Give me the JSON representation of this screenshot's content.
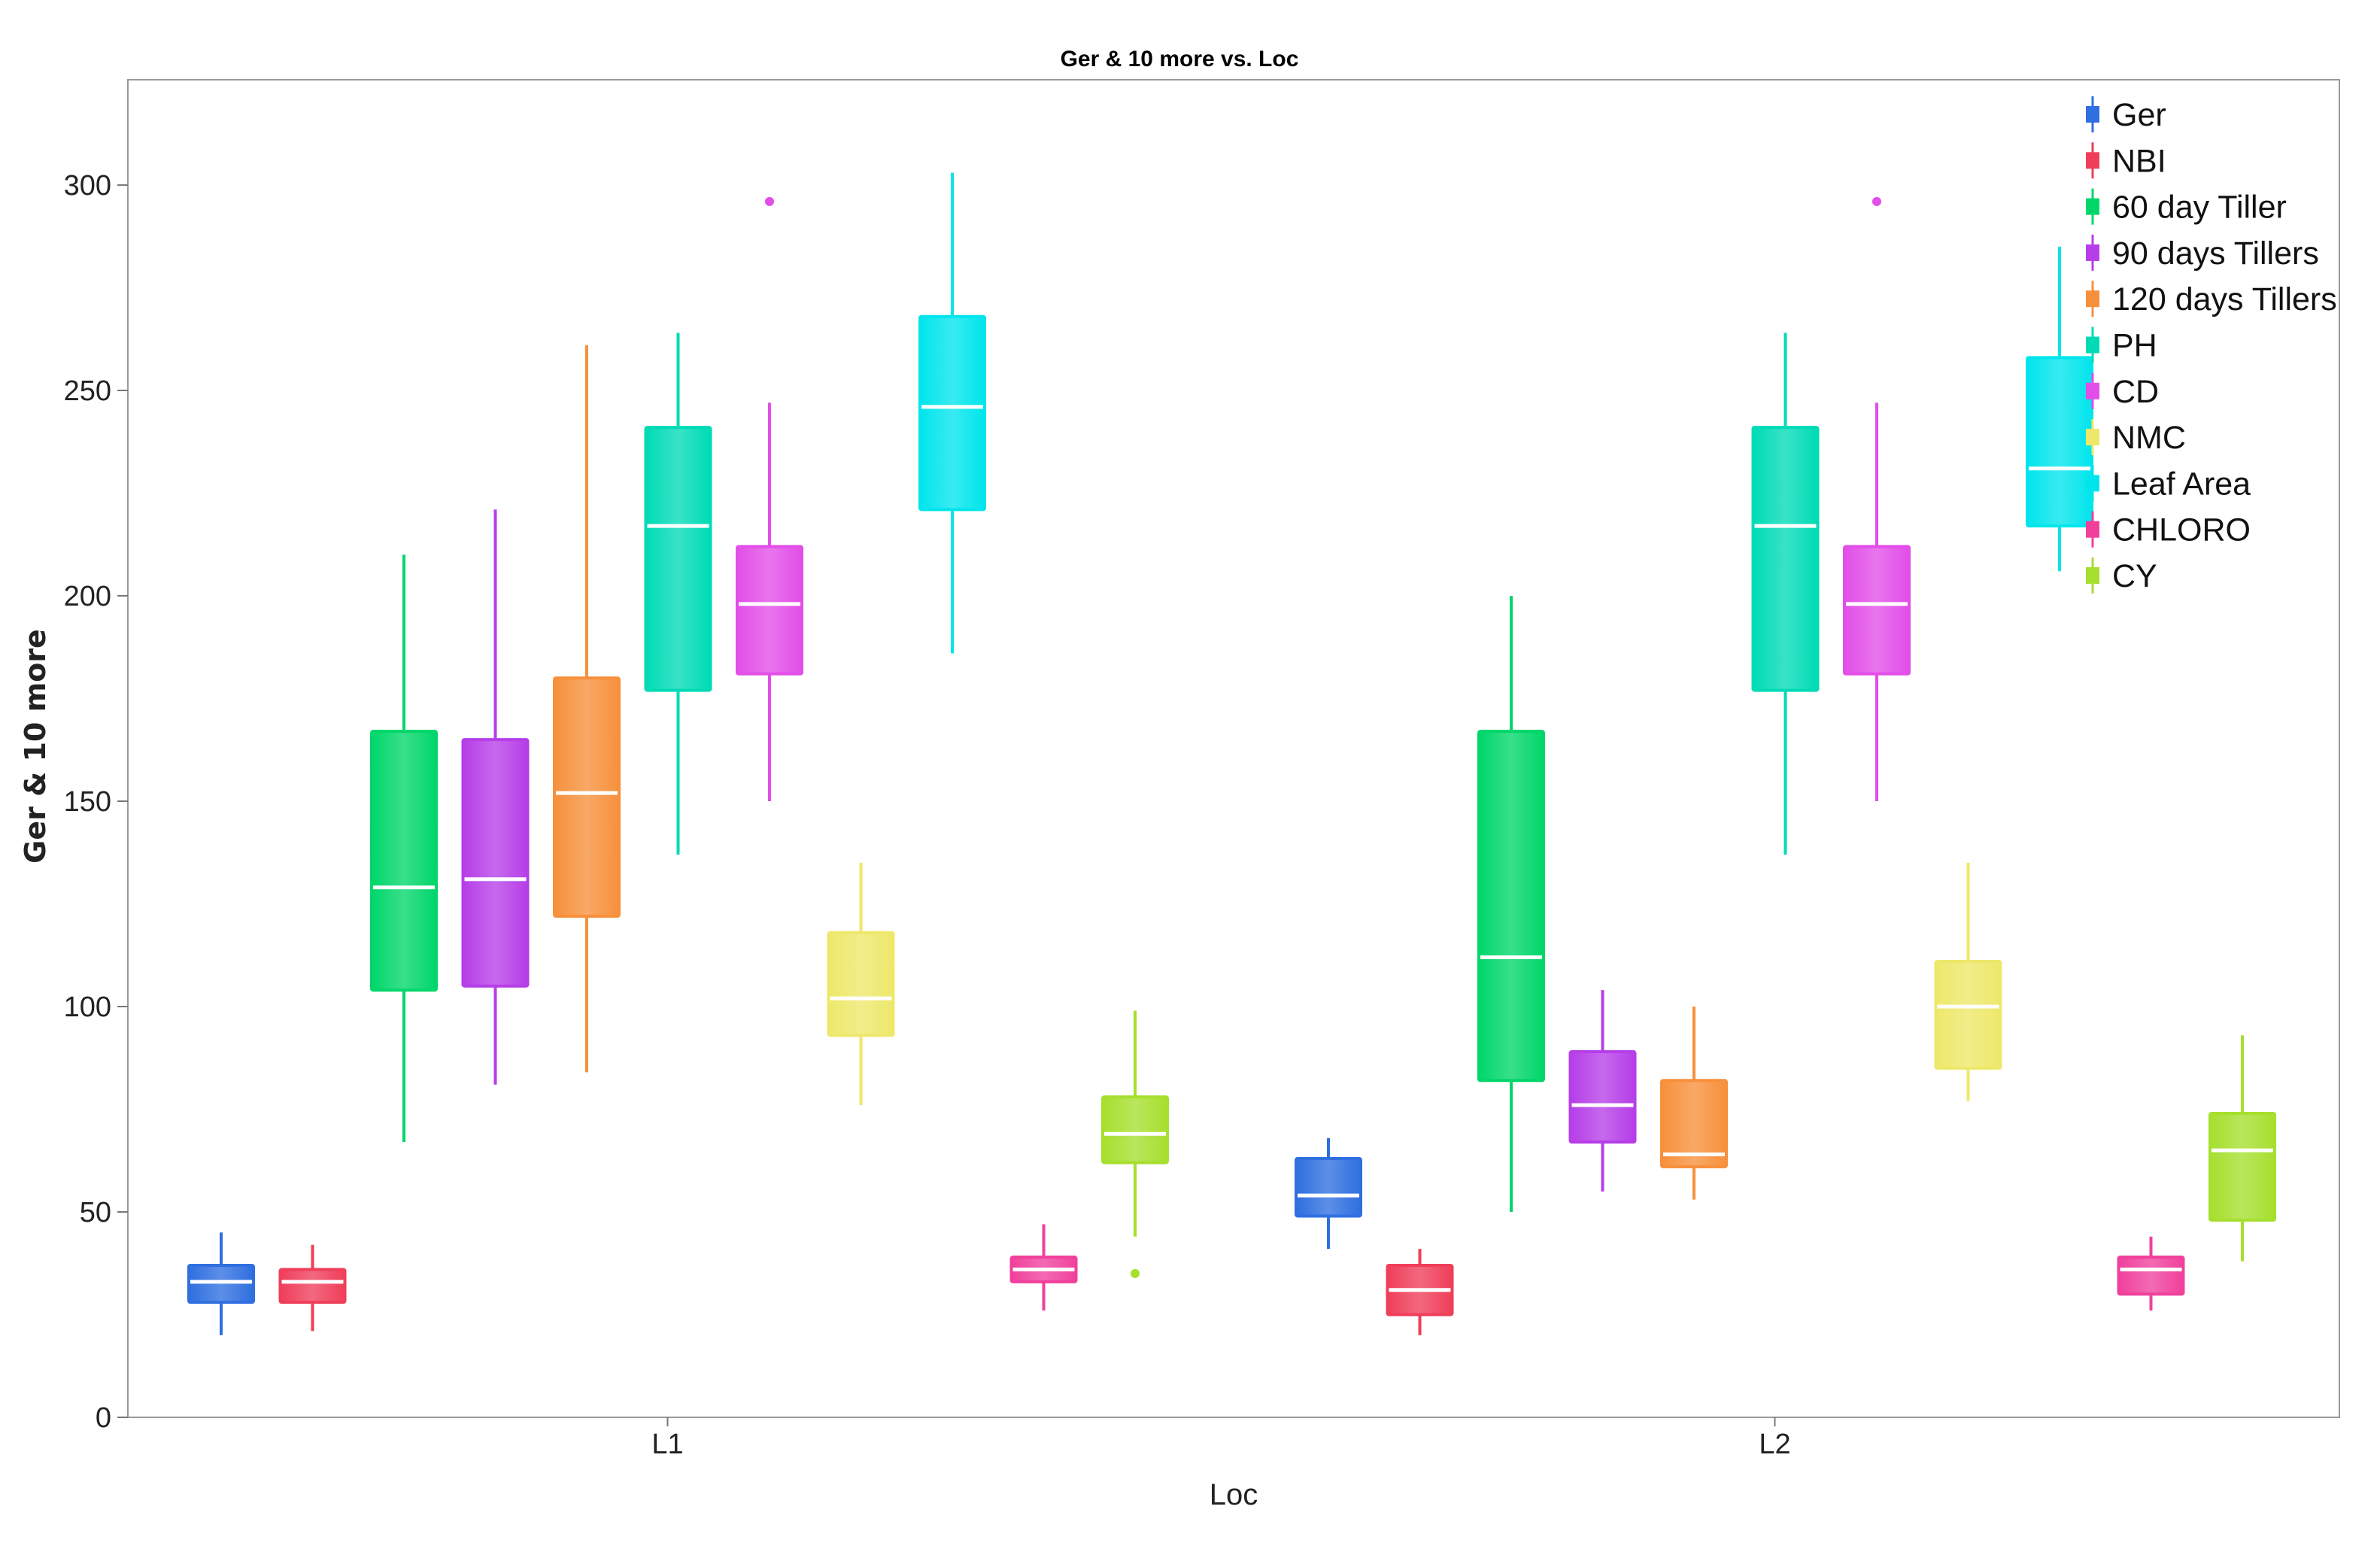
{
  "chart_data": {
    "type": "box",
    "title": "Ger & 10 more vs. Loc",
    "xlabel": "Loc",
    "ylabel": "Ger & 10 more",
    "ylim": [
      0,
      325
    ],
    "yticks": [
      0,
      50,
      100,
      150,
      200,
      250,
      300
    ],
    "categories": [
      "L1",
      "L2"
    ],
    "grid": false,
    "legend_position": "top-right",
    "series": [
      {
        "name": "Ger",
        "color": "#2f6fe0",
        "boxes": [
          {
            "group": "L1",
            "min": 20,
            "q1": 28,
            "median": 33,
            "q3": 37,
            "max": 45,
            "outliers": []
          },
          {
            "group": "L2",
            "min": 41,
            "q1": 49,
            "median": 54,
            "q3": 63,
            "max": 68,
            "outliers": []
          }
        ]
      },
      {
        "name": "NBI",
        "color": "#ef3e5a",
        "boxes": [
          {
            "group": "L1",
            "min": 21,
            "q1": 28,
            "median": 33,
            "q3": 36,
            "max": 42,
            "outliers": []
          },
          {
            "group": "L2",
            "min": 20,
            "q1": 25,
            "median": 31,
            "q3": 37,
            "max": 41,
            "outliers": []
          }
        ]
      },
      {
        "name": "60 day Tiller",
        "color": "#00d66a",
        "boxes": [
          {
            "group": "L1",
            "min": 67,
            "q1": 104,
            "median": 129,
            "q3": 167,
            "max": 210,
            "outliers": []
          },
          {
            "group": "L2",
            "min": 50,
            "q1": 82,
            "median": 112,
            "q3": 167,
            "max": 200,
            "outliers": []
          }
        ]
      },
      {
        "name": "90 days Tillers",
        "color": "#b63ee8",
        "boxes": [
          {
            "group": "L1",
            "min": 81,
            "q1": 105,
            "median": 131,
            "q3": 165,
            "max": 221,
            "outliers": []
          },
          {
            "group": "L2",
            "min": 55,
            "q1": 67,
            "median": 76,
            "q3": 89,
            "max": 104,
            "outliers": []
          }
        ]
      },
      {
        "name": "120 days Tillers",
        "color": "#f7903c",
        "boxes": [
          {
            "group": "L1",
            "min": 84,
            "q1": 122,
            "median": 152,
            "q3": 180,
            "max": 261,
            "outliers": []
          },
          {
            "group": "L2",
            "min": 53,
            "q1": 61,
            "median": 64,
            "q3": 82,
            "max": 100,
            "outliers": []
          }
        ]
      },
      {
        "name": "PH",
        "color": "#00dbb5",
        "boxes": [
          {
            "group": "L1",
            "min": 137,
            "q1": 177,
            "median": 217,
            "q3": 241,
            "max": 264,
            "outliers": []
          },
          {
            "group": "L2",
            "min": 137,
            "q1": 177,
            "median": 217,
            "q3": 241,
            "max": 264,
            "outliers": []
          }
        ]
      },
      {
        "name": "CD",
        "color": "#e24ee8",
        "boxes": [
          {
            "group": "L1",
            "min": 150,
            "q1": 181,
            "median": 198,
            "q3": 212,
            "max": 247,
            "outliers": [
              296
            ]
          },
          {
            "group": "L2",
            "min": 150,
            "q1": 181,
            "median": 198,
            "q3": 212,
            "max": 247,
            "outliers": [
              296
            ]
          }
        ]
      },
      {
        "name": "NMC",
        "color": "#ede86a",
        "boxes": [
          {
            "group": "L1",
            "min": 76,
            "q1": 93,
            "median": 102,
            "q3": 118,
            "max": 135,
            "outliers": []
          },
          {
            "group": "L2",
            "min": 77,
            "q1": 85,
            "median": 100,
            "q3": 111,
            "max": 135,
            "outliers": []
          }
        ]
      },
      {
        "name": "Leaf Area",
        "color": "#00e5ec",
        "boxes": [
          {
            "group": "L1",
            "min": 186,
            "q1": 221,
            "median": 246,
            "q3": 268,
            "max": 303,
            "outliers": []
          },
          {
            "group": "L2",
            "min": 206,
            "q1": 217,
            "median": 231,
            "q3": 258,
            "max": 285,
            "outliers": []
          }
        ]
      },
      {
        "name": "CHLORO",
        "color": "#f0409c",
        "boxes": [
          {
            "group": "L1",
            "min": 26,
            "q1": 33,
            "median": 36,
            "q3": 39,
            "max": 47,
            "outliers": []
          },
          {
            "group": "L2",
            "min": 26,
            "q1": 30,
            "median": 36,
            "q3": 39,
            "max": 44,
            "outliers": []
          }
        ]
      },
      {
        "name": "CY",
        "color": "#a6df2e",
        "boxes": [
          {
            "group": "L1",
            "min": 44,
            "q1": 62,
            "median": 69,
            "q3": 78,
            "max": 99,
            "outliers": [
              35
            ]
          },
          {
            "group": "L2",
            "min": 38,
            "q1": 48,
            "median": 65,
            "q3": 74,
            "max": 93,
            "outliers": []
          }
        ]
      }
    ]
  }
}
